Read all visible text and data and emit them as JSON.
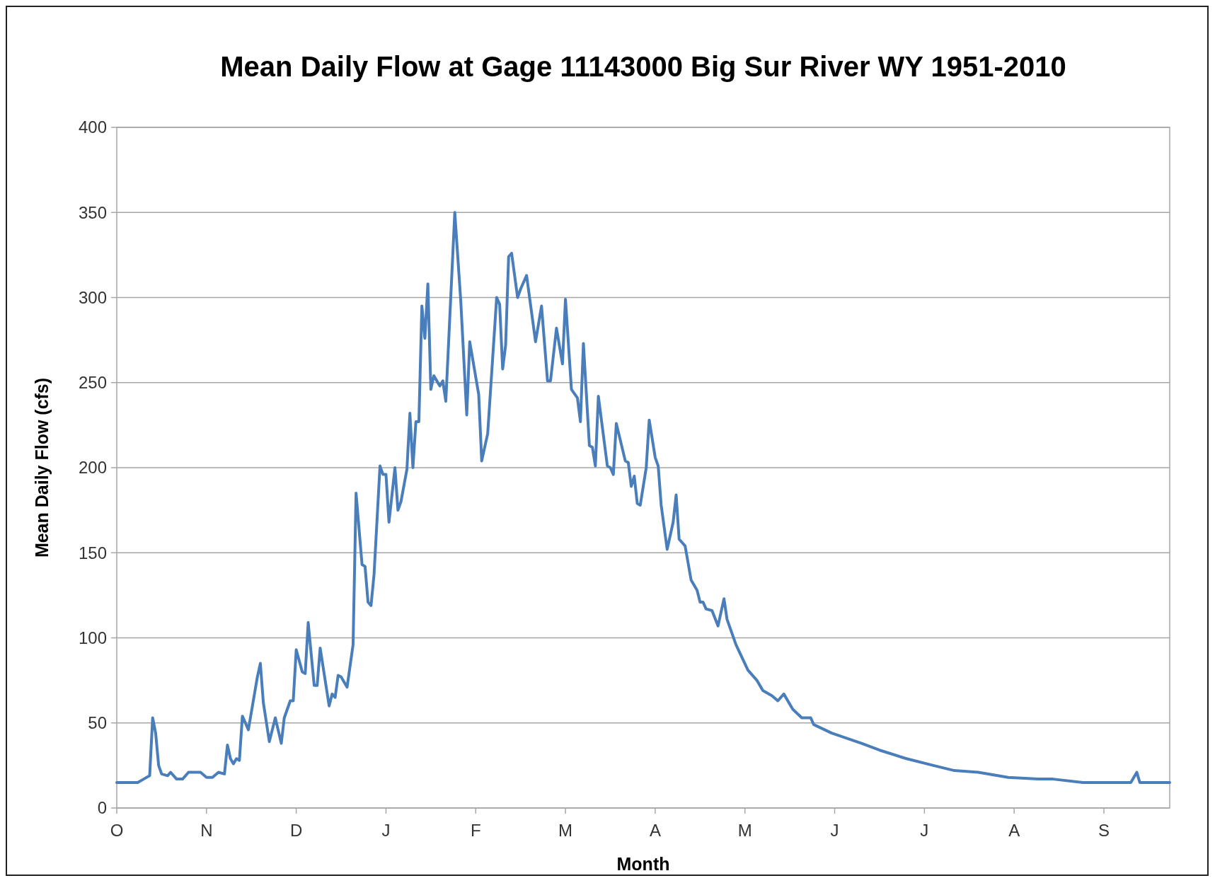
{
  "chart_data": {
    "type": "line",
    "title": "Mean Daily Flow at Gage 11143000 Big Sur River WY 1951-2010",
    "xlabel": "Month",
    "ylabel": "Mean Daily Flow (cfs)",
    "categories": [
      "O",
      null,
      null,
      null,
      null,
      null,
      null,
      null,
      null,
      null,
      null,
      null,
      null,
      null,
      null,
      null,
      null,
      null,
      null,
      null,
      null,
      null,
      null,
      null,
      null,
      null,
      null,
      null,
      null,
      null,
      "N",
      null,
      null,
      null,
      null,
      null,
      null,
      null,
      null,
      null,
      null,
      null,
      null,
      null,
      null,
      null,
      null,
      null,
      null,
      null,
      null,
      null,
      null,
      null,
      null,
      null,
      null,
      null,
      null,
      null,
      "D",
      null,
      null,
      null,
      null,
      null,
      null,
      null,
      null,
      null,
      null,
      null,
      null,
      null,
      null,
      null,
      null,
      null,
      null,
      null,
      null,
      null,
      null,
      null,
      null,
      null,
      null,
      null,
      null,
      null,
      "J",
      null,
      null,
      null,
      null,
      null,
      null,
      null,
      null,
      null,
      null,
      null,
      null,
      null,
      null,
      null,
      null,
      null,
      null,
      null,
      null,
      null,
      null,
      null,
      null,
      null,
      null,
      null,
      null,
      null,
      "F",
      null,
      null,
      null,
      null,
      null,
      null,
      null,
      null,
      null,
      null,
      null,
      null,
      null,
      null,
      null,
      null,
      null,
      null,
      null,
      null,
      null,
      null,
      null,
      null,
      null,
      null,
      null,
      null,
      null,
      "M",
      null,
      null,
      null,
      null,
      null,
      null,
      null,
      null,
      null,
      null,
      null,
      null,
      null,
      null,
      null,
      null,
      null,
      null,
      null,
      null,
      null,
      null,
      null,
      null,
      null,
      null,
      null,
      null,
      null,
      "A",
      null,
      null,
      null,
      null,
      null,
      null,
      null,
      null,
      null,
      null,
      null,
      null,
      null,
      null,
      null,
      null,
      null,
      null,
      null,
      null,
      null,
      null,
      null,
      null,
      null,
      null,
      null,
      null,
      null,
      "M",
      null,
      null,
      null,
      null,
      null,
      null,
      null,
      null,
      null,
      null,
      null,
      null,
      null,
      null,
      null,
      null,
      null,
      null,
      null,
      null,
      null,
      null,
      null,
      null,
      null,
      null,
      null,
      null,
      null,
      "J",
      null,
      null,
      null,
      null,
      null,
      null,
      null,
      null,
      null,
      null,
      null,
      null,
      null,
      null,
      null,
      null,
      null,
      null,
      null,
      null,
      null,
      null,
      null,
      null,
      null,
      null,
      null,
      null,
      null,
      "J",
      null,
      null,
      null,
      null,
      null,
      null,
      null,
      null,
      null,
      null,
      null,
      null,
      null,
      null,
      null,
      null,
      null,
      null,
      null,
      null,
      null,
      null,
      null,
      null,
      null,
      null,
      null,
      null,
      null,
      "A",
      null,
      null,
      null,
      null,
      null,
      null,
      null,
      null,
      null,
      null,
      null,
      null,
      null,
      null,
      null,
      null,
      null,
      null,
      null,
      null,
      null,
      null,
      null,
      null,
      null,
      null,
      null,
      null,
      null,
      "S",
      null,
      null,
      null,
      null,
      null,
      null,
      null,
      null,
      null,
      null,
      null,
      null,
      null,
      null,
      null,
      null,
      null,
      null,
      null,
      null,
      null,
      null
    ],
    "ylim": [
      0,
      400
    ],
    "yticks": [
      0,
      50,
      100,
      150,
      200,
      250,
      300,
      350,
      400
    ],
    "grid": "y",
    "marker": "none",
    "line_style": "solid",
    "series": [
      {
        "color": "#4a7ebb",
        "values": [
          15,
          null,
          null,
          15,
          null,
          null,
          null,
          15,
          null,
          17,
          null,
          19,
          53,
          44,
          25,
          20,
          null,
          19,
          21,
          null,
          17,
          null,
          17,
          null,
          21,
          null,
          21,
          null,
          21,
          null,
          18,
          null,
          18,
          null,
          21,
          null,
          20,
          37,
          29,
          26,
          29,
          28,
          54,
          null,
          46,
          null,
          null,
          77,
          85,
          62,
          null,
          39,
          null,
          53,
          null,
          38,
          53,
          null,
          63,
          63,
          93,
          null,
          80,
          79,
          109,
          null,
          72,
          72,
          94,
          null,
          null,
          60,
          67,
          65,
          78,
          77,
          null,
          71,
          null,
          96,
          185,
          null,
          143,
          142,
          121,
          119,
          137,
          null,
          201,
          196,
          196,
          168,
          null,
          200,
          175,
          180,
          null,
          199,
          232,
          200,
          227,
          227,
          295,
          276,
          308,
          246,
          254,
          null,
          248,
          251,
          239,
          null,
          null,
          350,
          null,
          298,
          null,
          231,
          274,
          null,
          null,
          243,
          204,
          null,
          220,
          null,
          null,
          300,
          296,
          258,
          272,
          324,
          326,
          null,
          300,
          305,
          null,
          313,
          null,
          null,
          274,
          null,
          295,
          null,
          251,
          251,
          null,
          282,
          null,
          261,
          299,
          null,
          246,
          null,
          241,
          227,
          273,
          null,
          213,
          212,
          201,
          242,
          null,
          null,
          201,
          200,
          196,
          226,
          null,
          null,
          204,
          203,
          189,
          195,
          179,
          178,
          null,
          200,
          228,
          null,
          206,
          201,
          178,
          null,
          152,
          null,
          168,
          184,
          158,
          null,
          154,
          null,
          134,
          null,
          128,
          121,
          121,
          117,
          null,
          116,
          null,
          107,
          null,
          123,
          111,
          null,
          null,
          96,
          null,
          null,
          null,
          81,
          null,
          null,
          75,
          null,
          69,
          null,
          null,
          66,
          null,
          63,
          null,
          67,
          null,
          null,
          58,
          null,
          null,
          53,
          null,
          null,
          53,
          49,
          null,
          null,
          null,
          null,
          null,
          44,
          null,
          null,
          null,
          null,
          null,
          null,
          null,
          null,
          null,
          38,
          null,
          null,
          null,
          null,
          null,
          34,
          null,
          null,
          null,
          null,
          null,
          null,
          null,
          null,
          29,
          null,
          null,
          null,
          null,
          null,
          null,
          null,
          null,
          25,
          null,
          null,
          null,
          null,
          null,
          null,
          22,
          null,
          null,
          null,
          null,
          null,
          null,
          null,
          21,
          null,
          null,
          null,
          null,
          null,
          null,
          null,
          null,
          null,
          18,
          null,
          null,
          null,
          null,
          null,
          null,
          null,
          null,
          null,
          17,
          null,
          null,
          null,
          null,
          17,
          null,
          null,
          null,
          null,
          null,
          null,
          null,
          null,
          null,
          15,
          null,
          null,
          null,
          null,
          null,
          null,
          null,
          null,
          null,
          null,
          null,
          15,
          null,
          null,
          null,
          15,
          null,
          21,
          15,
          null,
          null,
          null,
          null,
          null,
          null,
          null,
          null,
          null,
          15
        ]
      }
    ]
  }
}
